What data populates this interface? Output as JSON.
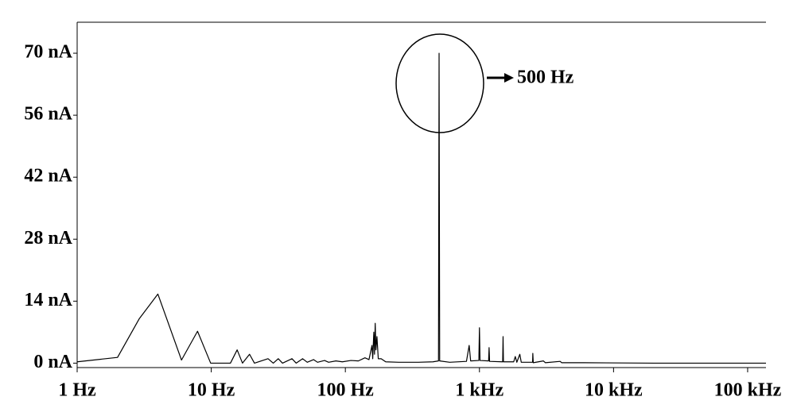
{
  "chart_data": {
    "type": "line",
    "annotation": "500 Hz",
    "xlog": true,
    "xlim": [
      1,
      137000
    ],
    "ylim": [
      -1,
      77
    ],
    "xticks": [
      {
        "value": 1,
        "label": "1 Hz"
      },
      {
        "value": 10,
        "label": "10 Hz"
      },
      {
        "value": 100,
        "label": "100 Hz"
      },
      {
        "value": 1000,
        "label": "1 kHz"
      },
      {
        "value": 10000,
        "label": "10 kHz"
      },
      {
        "value": 100000,
        "label": "100 kHz"
      }
    ],
    "yticks": [
      {
        "value": 0,
        "label": "0 nA"
      },
      {
        "value": 14,
        "label": "14 nA"
      },
      {
        "value": 28,
        "label": "28 nA"
      },
      {
        "value": 42,
        "label": "42 nA"
      },
      {
        "value": 56,
        "label": "56 nA"
      },
      {
        "value": 70,
        "label": "70 nA"
      }
    ],
    "x": [
      1,
      2,
      2.9,
      4,
      6,
      7.9,
      9.9,
      13.9,
      15.6,
      17.1,
      19.3,
      21,
      26.5,
      29,
      31.6,
      34,
      40,
      43,
      48,
      52,
      58,
      62,
      70,
      75,
      85,
      95,
      110,
      125,
      140,
      150,
      158,
      160,
      163,
      165,
      167,
      169,
      172,
      176,
      185,
      200,
      250,
      350,
      450,
      495,
      500,
      505,
      600,
      800,
      838,
      860,
      990,
      1000,
      1010,
      1170,
      1180,
      1190,
      1490,
      1500,
      1510,
      1800,
      1850,
      1900,
      2000,
      2050,
      2490,
      2500,
      2520,
      3000,
      3100,
      4000,
      4100,
      6000,
      20000,
      137000
    ],
    "series": [
      {
        "color": "#000000",
        "values": [
          0.3,
          1.3,
          10,
          15.6,
          0.7,
          7.2,
          0,
          0,
          3,
          0,
          2,
          0,
          1,
          0,
          1,
          0,
          1,
          0,
          1,
          0.2,
          0.8,
          0.2,
          0.6,
          0.2,
          0.5,
          0.3,
          0.6,
          0.5,
          1.2,
          0.8,
          4,
          1,
          7,
          2,
          9,
          3,
          6,
          1,
          1,
          0.3,
          0.2,
          0.2,
          0.3,
          0.5,
          70,
          0.5,
          0.2,
          0.4,
          4,
          0.5,
          0.6,
          8,
          0.6,
          0.5,
          3.5,
          0.4,
          0.3,
          6,
          0.3,
          0.3,
          1.5,
          0.2,
          2,
          0.2,
          0.2,
          2.2,
          0.1,
          0.5,
          0.1,
          0.4,
          0.1,
          0.1,
          0,
          0
        ]
      }
    ]
  }
}
